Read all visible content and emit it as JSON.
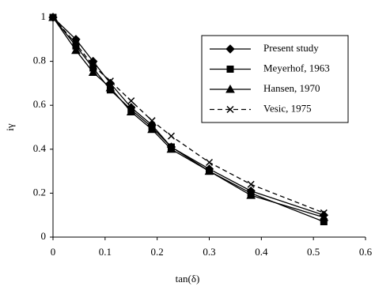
{
  "chart_data": {
    "type": "line",
    "xlabel": "tan(δ)",
    "ylabel": "iγ",
    "x": [
      0,
      0.044,
      0.077,
      0.11,
      0.15,
      0.19,
      0.227,
      0.3,
      0.38,
      0.52
    ],
    "series": [
      {
        "name": "Present study",
        "color": "#000000",
        "marker": "diamond",
        "dash": false,
        "values": [
          1,
          0.9,
          0.8,
          0.7,
          0.59,
          0.51,
          0.41,
          0.31,
          0.21,
          0.1
        ]
      },
      {
        "name": "Meyerhof, 1963",
        "color": "#000000",
        "marker": "square",
        "dash": false,
        "values": [
          1,
          0.87,
          0.77,
          0.67,
          0.58,
          0.5,
          0.41,
          0.3,
          0.2,
          0.07
        ]
      },
      {
        "name": "Hansen, 1970",
        "color": "#000000",
        "marker": "triangle",
        "dash": false,
        "values": [
          1,
          0.85,
          0.75,
          0.68,
          0.57,
          0.49,
          0.4,
          0.3,
          0.19,
          0.09
        ]
      },
      {
        "name": "Vesic, 1975",
        "color": "#000000",
        "marker": "x",
        "dash": true,
        "values": [
          1,
          0.88,
          0.78,
          0.71,
          0.62,
          0.53,
          0.46,
          0.34,
          0.24,
          0.11
        ]
      }
    ],
    "xlim": [
      0,
      0.6
    ],
    "xticks": [
      0,
      0.1,
      0.2,
      0.3,
      0.4,
      0.5,
      0.6
    ],
    "ylim": [
      0,
      1
    ],
    "yticks": [
      0,
      0.2,
      0.4,
      0.6,
      0.8,
      1
    ],
    "grid": false,
    "legend": "upper right"
  }
}
